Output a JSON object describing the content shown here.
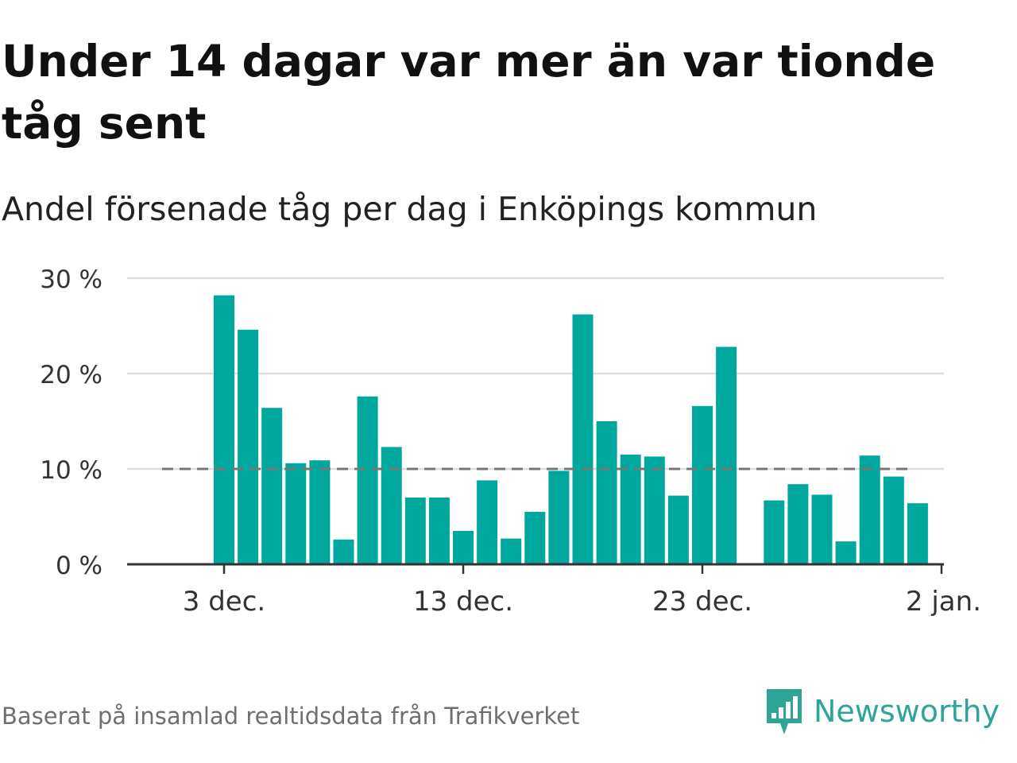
{
  "title": "Under 14 dagar var mer än var tionde tåg sent",
  "subtitle": "Andel försenade tåg per dag i Enköpings kommun",
  "source": "Baserat på insamlad realtidsdata från Trafikverket",
  "brand": {
    "name": "Newsworthy",
    "color": "#2fa597",
    "icon": "newsworthy-logo-icon"
  },
  "colors": {
    "bar": "#00a79d",
    "grid": "#dddddd",
    "axis": "#333333",
    "reference": "#777777"
  },
  "chart_data": {
    "type": "bar",
    "title": "Under 14 dagar var mer än var tionde tåg sent",
    "subtitle": "Andel försenade tåg per dag i Enköpings kommun",
    "x_axis_type": "date",
    "x_tick_labels": [
      "3 dec.",
      "13 dec.",
      "23 dec.",
      "2 jan."
    ],
    "x_tick_dates": [
      "2023-12-03",
      "2023-12-13",
      "2023-12-23",
      "2024-01-02"
    ],
    "y_unit": "%",
    "ylim": [
      0,
      30
    ],
    "y_ticks": [
      0,
      10,
      20,
      30
    ],
    "y_tick_labels": [
      "0 %",
      "10 %",
      "20 %",
      "30 %"
    ],
    "grid": true,
    "reference_line": {
      "value": 10,
      "style": "dashed"
    },
    "x": [
      "2023-12-03",
      "2023-12-04",
      "2023-12-05",
      "2023-12-06",
      "2023-12-07",
      "2023-12-08",
      "2023-12-09",
      "2023-12-10",
      "2023-12-11",
      "2023-12-12",
      "2023-12-13",
      "2023-12-14",
      "2023-12-15",
      "2023-12-16",
      "2023-12-17",
      "2023-12-18",
      "2023-12-19",
      "2023-12-20",
      "2023-12-21",
      "2023-12-22",
      "2023-12-23",
      "2023-12-24",
      "2023-12-25",
      "2023-12-26",
      "2023-12-27",
      "2023-12-28",
      "2023-12-29",
      "2023-12-30",
      "2023-12-31",
      "2024-01-01"
    ],
    "values": [
      28.2,
      24.6,
      16.4,
      10.6,
      10.9,
      2.6,
      17.6,
      12.3,
      7.0,
      7.0,
      3.5,
      8.8,
      2.7,
      5.5,
      9.8,
      26.2,
      15.0,
      11.5,
      11.3,
      7.2,
      16.6,
      22.8,
      0,
      6.7,
      8.4,
      7.3,
      2.4,
      11.4,
      9.2,
      6.4
    ],
    "series": [
      {
        "values": [
          28.2,
          24.6,
          16.4,
          10.6,
          10.9,
          2.6,
          17.6,
          12.3,
          7.0,
          7.0,
          3.5,
          8.8,
          2.7,
          5.5,
          9.8,
          26.2,
          15.0,
          11.5,
          11.3,
          7.2,
          16.6,
          22.8,
          0,
          6.7,
          8.4,
          7.3,
          2.4,
          11.4,
          9.2,
          6.4
        ]
      }
    ]
  }
}
